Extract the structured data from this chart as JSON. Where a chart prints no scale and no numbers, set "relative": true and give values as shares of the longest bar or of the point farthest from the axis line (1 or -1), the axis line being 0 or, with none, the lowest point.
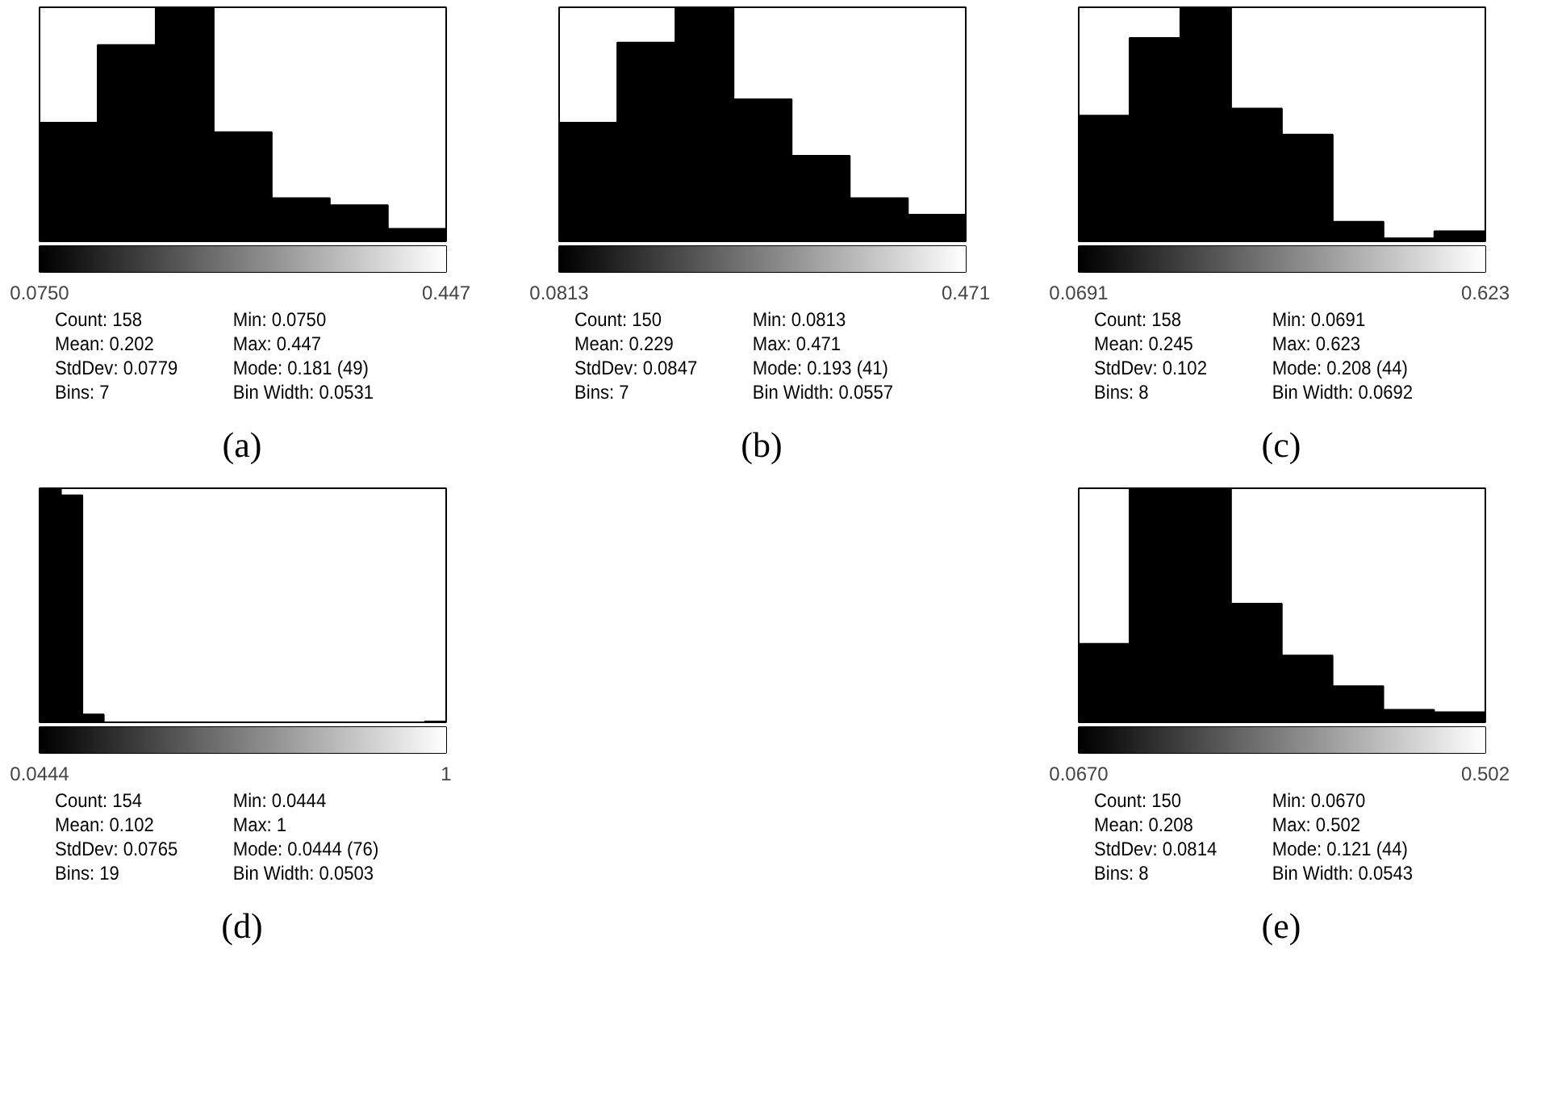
{
  "chart_data": [
    {
      "type": "bar",
      "title": "(a)",
      "relative": true,
      "color": "#000000",
      "x": [
        0.1016,
        0.1547,
        0.2078,
        0.2609,
        0.314,
        0.3671,
        0.4202
      ],
      "values": [
        0.51,
        0.84,
        1,
        0.47,
        0.19,
        0.16,
        0.06
      ],
      "xlim": [
        0.075,
        0.447
      ],
      "xticks": [
        {
          "value": 0.075,
          "label": "0.0750"
        },
        {
          "value": 0.447,
          "label": "0.447"
        }
      ],
      "grid": false,
      "annotations": [
        "Count: 158",
        "Mean: 0.202",
        "StdDev: 0.0779",
        "Bins: 7",
        "Min: 0.0750",
        "Max: 0.447",
        "Mode: 0.181 (49)",
        "Bin Width: 0.0531"
      ]
    },
    {
      "type": "bar",
      "title": "(b)",
      "relative": true,
      "color": "#000000",
      "x": [
        0.1092,
        0.1649,
        0.2206,
        0.2763,
        0.332,
        0.3877,
        0.4434
      ],
      "values": [
        0.51,
        0.85,
        1,
        0.61,
        0.37,
        0.19,
        0.12
      ],
      "xlim": [
        0.0813,
        0.471
      ],
      "xticks": [
        {
          "value": 0.0813,
          "label": "0.0813"
        },
        {
          "value": 0.471,
          "label": "0.471"
        }
      ],
      "grid": false,
      "annotations": [
        "Count: 150",
        "Mean: 0.229",
        "StdDev: 0.0847",
        "Bins: 7",
        "Min: 0.0813",
        "Max: 0.471",
        "Mode: 0.193 (41)",
        "Bin Width: 0.0557"
      ]
    },
    {
      "type": "bar",
      "title": "(c)",
      "relative": true,
      "color": "#000000",
      "x": [
        0.1037,
        0.1729,
        0.2421,
        0.3113,
        0.3805,
        0.4497,
        0.5189,
        0.5881
      ],
      "values": [
        0.54,
        0.87,
        1,
        0.57,
        0.46,
        0.09,
        0.02,
        0.05
      ],
      "xlim": [
        0.0691,
        0.623
      ],
      "xticks": [
        {
          "value": 0.0691,
          "label": "0.0691"
        },
        {
          "value": 0.623,
          "label": "0.623"
        }
      ],
      "grid": false,
      "annotations": [
        "Count: 158",
        "Mean: 0.245",
        "StdDev: 0.102",
        "Bins: 8",
        "Min: 0.0691",
        "Max: 0.623",
        "Mode: 0.208 (44)",
        "Bin Width: 0.0692"
      ]
    },
    {
      "type": "bar",
      "title": "(d)",
      "relative": true,
      "color": "#000000",
      "x": [
        0.0696,
        0.1199,
        0.1702,
        0.2205,
        0.2708,
        0.3211,
        0.3714,
        0.4217,
        0.472,
        0.5223,
        0.5726,
        0.6229,
        0.6732,
        0.7235,
        0.7738,
        0.8241,
        0.8744,
        0.9247,
        0.975
      ],
      "values": [
        1,
        0.97,
        0.04,
        0,
        0,
        0,
        0,
        0,
        0,
        0,
        0,
        0,
        0,
        0,
        0,
        0,
        0,
        0,
        0.01
      ],
      "xlim": [
        0.0444,
        1
      ],
      "xticks": [
        {
          "value": 0.0444,
          "label": "0.0444"
        },
        {
          "value": 1,
          "label": "1"
        }
      ],
      "grid": false,
      "annotations": [
        "Count: 154",
        "Mean: 0.102",
        "StdDev: 0.0765",
        "Bins: 19",
        "Min: 0.0444",
        "Max: 1",
        "Mode: 0.0444 (76)",
        "Bin Width: 0.0503"
      ]
    },
    {
      "type": "bar",
      "title": "(e)",
      "relative": true,
      "color": "#000000",
      "x": [
        0.0942,
        0.1485,
        0.2028,
        0.2571,
        0.3114,
        0.3657,
        0.42,
        0.4743
      ],
      "values": [
        0.34,
        1,
        1,
        0.51,
        0.29,
        0.16,
        0.06,
        0.05
      ],
      "xlim": [
        0.067,
        0.502
      ],
      "xticks": [
        {
          "value": 0.067,
          "label": "0.0670"
        },
        {
          "value": 0.502,
          "label": "0.502"
        }
      ],
      "grid": false,
      "annotations": [
        "Count: 150",
        "Mean: 0.208",
        "StdDev: 0.0814",
        "Bins: 8",
        "Min: 0.0670",
        "Max: 0.502",
        "Mode: 0.121 (44)",
        "Bin Width: 0.0543"
      ]
    }
  ]
}
